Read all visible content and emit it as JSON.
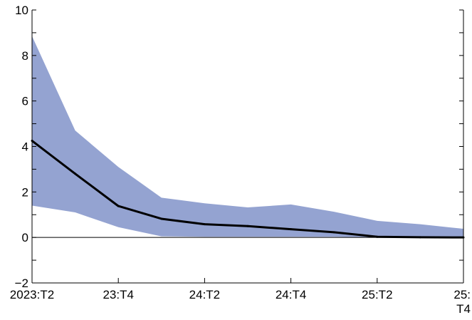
{
  "chart_data": {
    "type": "area",
    "title": "",
    "xlabel": "",
    "ylabel": "",
    "x": [
      "2023:T2",
      "2023:T3",
      "2023:T4",
      "2024:T1",
      "2024:T2",
      "2024:T3",
      "2024:T4",
      "2025:T1",
      "2025:T2",
      "2025:T3",
      "2025:T4"
    ],
    "x_tick_labels": [
      {
        "i": 0,
        "lines": [
          "2023:T2"
        ]
      },
      {
        "i": 2,
        "lines": [
          "23:T4"
        ]
      },
      {
        "i": 4,
        "lines": [
          "24:T2"
        ]
      },
      {
        "i": 6,
        "lines": [
          "24:T4"
        ]
      },
      {
        "i": 8,
        "lines": [
          "25:T2"
        ]
      },
      {
        "i": 10,
        "lines": [
          "25:",
          "T4"
        ]
      }
    ],
    "ylim": [
      -2,
      10
    ],
    "y_tick_labels": [
      {
        "value": -2,
        "label": "−2"
      },
      {
        "value": 0,
        "label": "0"
      },
      {
        "value": 2,
        "label": "2"
      },
      {
        "value": 4,
        "label": "4"
      },
      {
        "value": 6,
        "label": "6"
      },
      {
        "value": 8,
        "label": "8"
      },
      {
        "value": 10,
        "label": "10"
      }
    ],
    "y_minor_ticks": [
      -1,
      1,
      3,
      5,
      7,
      9
    ],
    "series": [
      {
        "values": [
          4.25,
          2.8,
          1.38,
          0.82,
          0.58,
          0.5,
          0.36,
          0.23,
          0.03,
          0.01,
          0.0
        ]
      }
    ],
    "band": {
      "upper": [
        8.85,
        4.7,
        3.1,
        1.75,
        1.5,
        1.32,
        1.45,
        1.13,
        0.73,
        0.58,
        0.38
      ],
      "lower": [
        1.4,
        1.1,
        0.45,
        0.05,
        0.03,
        0.03,
        0.03,
        0.03,
        0.0,
        0.0,
        -0.02
      ]
    },
    "zero_line": true,
    "grid": false,
    "legend": "none",
    "colors": {
      "band": "#94a3d1",
      "line": "#000000",
      "axis": "#000000"
    }
  }
}
